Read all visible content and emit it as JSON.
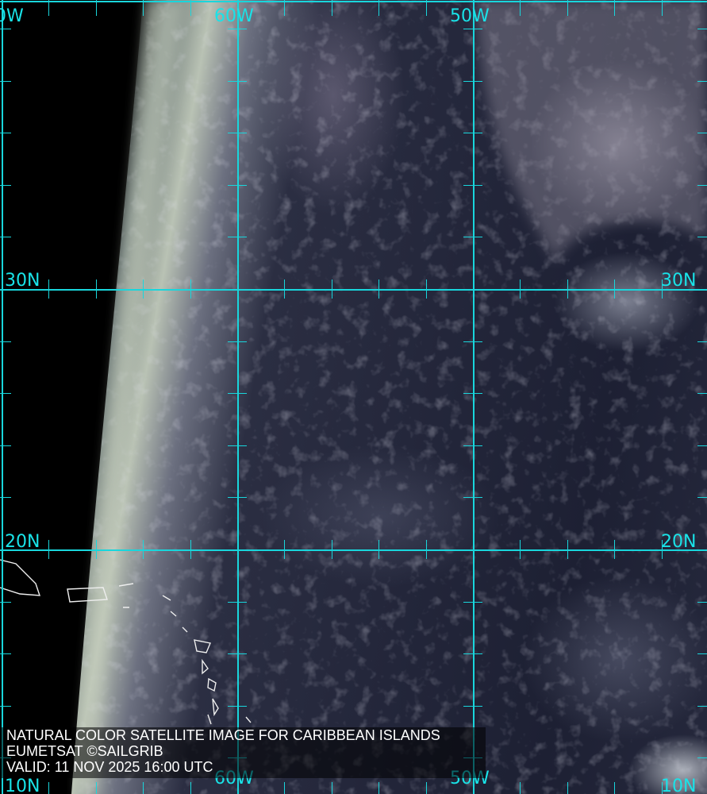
{
  "caption": {
    "title": "NATURAL COLOR SATELLITE IMAGE FOR CARIBBEAN ISLANDS",
    "credit": "EUMETSAT ©SAILGRIB",
    "valid": "VALID:  11 NOV 2025 16:00 UTC"
  },
  "grid": {
    "color": "#19d6dc",
    "top_labels": [
      "0W",
      "60W",
      "50W"
    ],
    "bottom_labels": [
      "10N",
      "60W",
      "50W",
      "10N"
    ],
    "left_labels": [
      "30N",
      "20N"
    ],
    "right_labels": [
      "30N",
      "20N"
    ]
  }
}
